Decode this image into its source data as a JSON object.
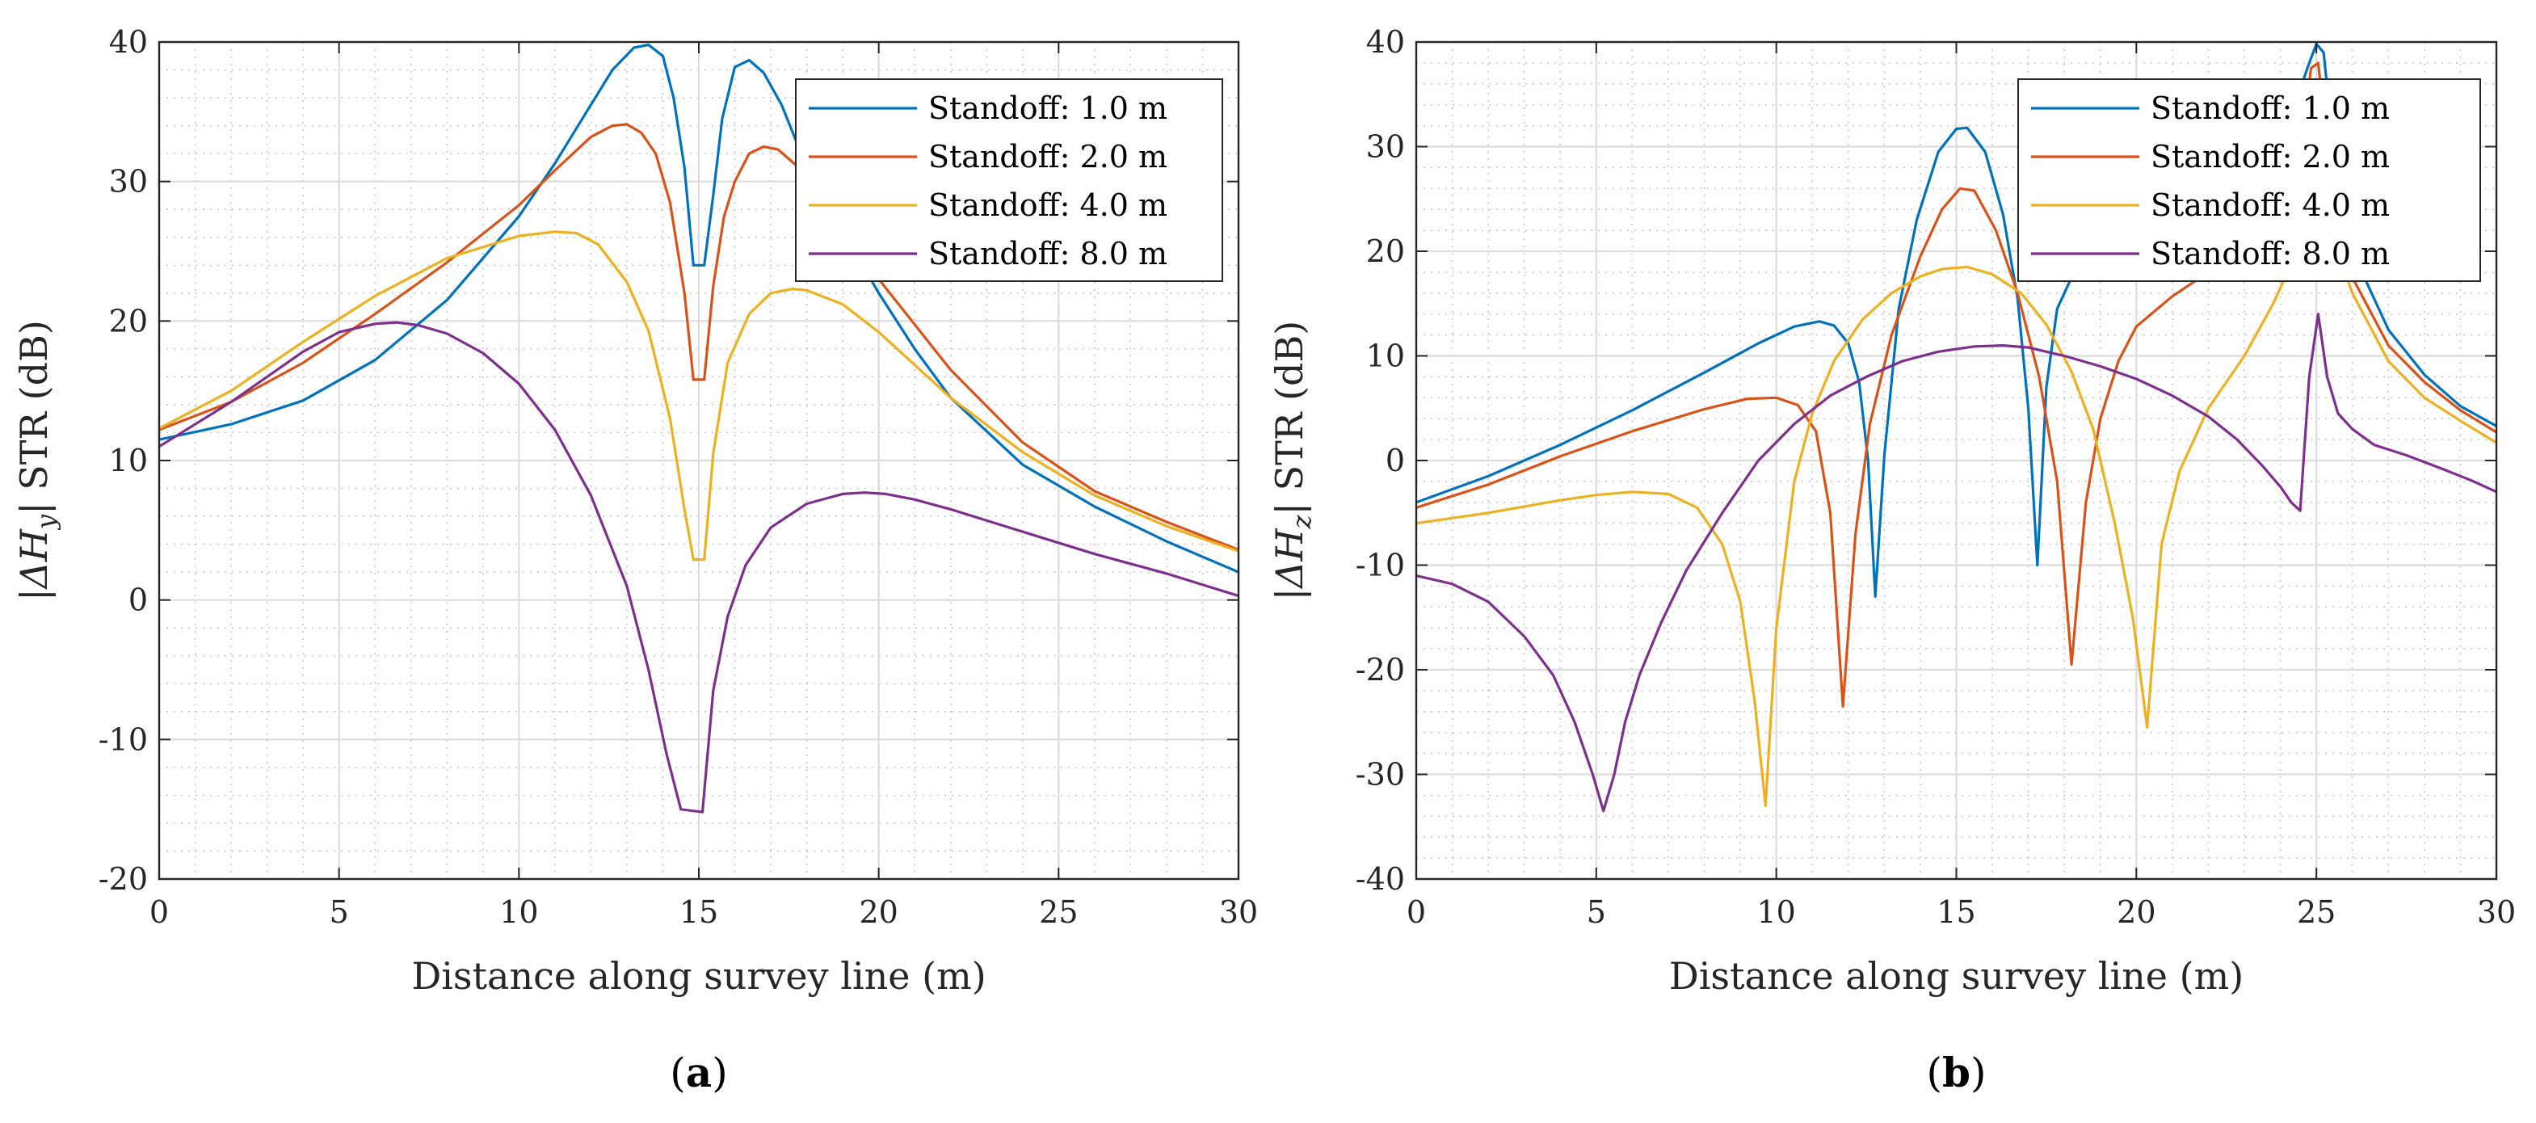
{
  "chart_data": [
    {
      "type": "line",
      "panel_label": "a",
      "xlabel": "Distance along survey line (m)",
      "ylabel_prefix": "|ΔH",
      "ylabel_sub": "y",
      "ylabel_suffix": "| STR (dB)",
      "xlim": [
        0,
        30
      ],
      "ylim": [
        -20,
        40
      ],
      "xticks": [
        0,
        5,
        10,
        15,
        20,
        25,
        30
      ],
      "yticks": [
        -20,
        -10,
        0,
        10,
        20,
        30,
        40
      ],
      "grid": true,
      "legend_position": "top-right",
      "series": [
        {
          "name": "Standoff:  1.0 m",
          "color": "#0072BD",
          "x": [
            0,
            2,
            4,
            6,
            8,
            10,
            11,
            12,
            12.6,
            13.2,
            13.6,
            14,
            14.3,
            14.6,
            14.85,
            15.15,
            15.4,
            15.65,
            16,
            16.4,
            16.8,
            17.3,
            18,
            19,
            20,
            21,
            22,
            24,
            26,
            28,
            30
          ],
          "y": [
            11.5,
            12.6,
            14.3,
            17.2,
            21.5,
            27.5,
            31.3,
            35.5,
            38,
            39.6,
            39.8,
            39,
            36,
            31,
            24,
            24,
            29,
            34.5,
            38.2,
            38.7,
            37.8,
            35.5,
            31,
            26.5,
            22,
            18,
            14.5,
            9.7,
            6.7,
            4.2,
            2
          ]
        },
        {
          "name": "Standoff:  2.0 m",
          "color": "#D95319",
          "x": [
            0,
            2,
            4,
            6,
            8,
            10,
            11,
            12,
            12.6,
            13,
            13.4,
            13.8,
            14.2,
            14.6,
            14.85,
            15.15,
            15.4,
            15.7,
            16,
            16.4,
            16.8,
            17.2,
            18,
            19,
            20,
            22,
            24,
            26,
            28,
            30
          ],
          "y": [
            12.2,
            14.2,
            17,
            20.5,
            24.2,
            28.3,
            30.8,
            33.2,
            34,
            34.1,
            33.5,
            32,
            28.5,
            22,
            15.8,
            15.8,
            22.5,
            27.5,
            30,
            32,
            32.5,
            32.3,
            30.5,
            27,
            23,
            16.5,
            11.3,
            7.8,
            5.6,
            3.6
          ]
        },
        {
          "name": "Standoff:  4.0 m",
          "color": "#EDB120",
          "x": [
            0,
            2,
            4,
            6,
            8,
            10,
            11,
            11.6,
            12.2,
            13,
            13.6,
            14.2,
            14.6,
            14.85,
            15.15,
            15.4,
            15.8,
            16.4,
            17,
            17.6,
            18,
            19,
            20,
            22,
            24,
            26,
            28,
            30
          ],
          "y": [
            12.3,
            15,
            18.5,
            21.8,
            24.5,
            26.1,
            26.4,
            26.3,
            25.5,
            22.8,
            19.3,
            13,
            6.5,
            2.9,
            2.9,
            10.5,
            17,
            20.5,
            22,
            22.3,
            22.2,
            21.2,
            19.2,
            14.5,
            10.6,
            7.5,
            5.3,
            3.5
          ]
        },
        {
          "name": "Standoff:  8.0 m",
          "color": "#7E2F8E",
          "x": [
            0,
            2,
            4,
            5,
            6,
            6.6,
            7.2,
            8,
            9,
            10,
            11,
            12,
            13,
            13.6,
            14.1,
            14.5,
            14.8,
            15.1,
            15.4,
            15.8,
            16.3,
            17,
            18,
            19,
            19.6,
            20.2,
            21,
            22,
            24,
            26,
            28,
            30
          ],
          "y": [
            11,
            14.2,
            17.8,
            19.2,
            19.8,
            19.9,
            19.7,
            19.1,
            17.7,
            15.5,
            12.2,
            7.5,
            1,
            -5,
            -11,
            -15,
            -15.1,
            -15.2,
            -6.5,
            -1.2,
            2.5,
            5.2,
            6.9,
            7.6,
            7.7,
            7.6,
            7.2,
            6.5,
            4.9,
            3.3,
            1.9,
            0.3
          ]
        }
      ]
    },
    {
      "type": "line",
      "panel_label": "b",
      "xlabel": "Distance along survey line (m)",
      "ylabel_prefix": "|ΔH",
      "ylabel_sub": "z",
      "ylabel_suffix": "| STR (dB)",
      "xlim": [
        0,
        30
      ],
      "ylim": [
        -40,
        40
      ],
      "xticks": [
        0,
        5,
        10,
        15,
        20,
        25,
        30
      ],
      "yticks": [
        -40,
        -30,
        -20,
        -10,
        0,
        10,
        20,
        30,
        40
      ],
      "grid": true,
      "legend_position": "top-right",
      "series": [
        {
          "name": "Standoff:  1.0 m",
          "color": "#0072BD",
          "x": [
            0,
            2,
            4,
            6,
            8,
            9.5,
            10.5,
            11.2,
            11.6,
            12,
            12.3,
            12.55,
            12.75,
            13,
            13.4,
            13.9,
            14.5,
            15,
            15.3,
            15.8,
            16.3,
            16.7,
            17,
            17.25,
            17.5,
            17.8,
            18.2,
            19,
            20,
            21,
            22,
            23,
            24,
            24.5,
            24.8,
            25,
            25.2,
            25.5,
            26,
            27,
            28,
            29,
            30
          ],
          "y": [
            -4,
            -1.5,
            1.5,
            4.8,
            8.4,
            11.2,
            12.8,
            13.3,
            12.9,
            11.2,
            7.5,
            0,
            -13,
            0.5,
            14.5,
            23,
            29.5,
            31.7,
            31.8,
            29.5,
            23.5,
            15.5,
            5,
            -10,
            7,
            14.5,
            17.5,
            20.2,
            22.5,
            24.5,
            26,
            28.5,
            31.5,
            35,
            38,
            39.8,
            39,
            29,
            20,
            12.5,
            8.2,
            5.2,
            3.3
          ]
        },
        {
          "name": "Standoff:  2.0 m",
          "color": "#D95319",
          "x": [
            0,
            2,
            4,
            6,
            8,
            9.2,
            10,
            10.6,
            11.1,
            11.5,
            11.85,
            12.2,
            12.6,
            13.2,
            14,
            14.6,
            15.1,
            15.5,
            16.1,
            16.7,
            17.3,
            17.8,
            18.2,
            18.6,
            19,
            19.5,
            20,
            21,
            22,
            23,
            24,
            24.5,
            24.85,
            25.05,
            25.3,
            25.6,
            26,
            27,
            28,
            29,
            30
          ],
          "y": [
            -4.5,
            -2.3,
            0.4,
            2.8,
            4.9,
            5.9,
            6,
            5.3,
            2.8,
            -5,
            -23.5,
            -7,
            3.5,
            12,
            19.5,
            24,
            26,
            25.8,
            22,
            16,
            8,
            -2,
            -19.5,
            -4,
            4,
            9.5,
            12.8,
            15.7,
            18,
            20,
            23.5,
            28,
            37.5,
            38,
            30,
            22,
            17.5,
            11,
            7.5,
            4.8,
            2.7
          ]
        },
        {
          "name": "Standoff:  4.0 m",
          "color": "#EDB120",
          "x": [
            0,
            2,
            4,
            5,
            6,
            7,
            7.8,
            8.5,
            9,
            9.4,
            9.7,
            10,
            10.5,
            11,
            11.6,
            12.4,
            13.2,
            14,
            14.6,
            15.3,
            16,
            16.8,
            17.5,
            18.2,
            18.8,
            19.4,
            19.9,
            20.3,
            20.7,
            21.2,
            22,
            23,
            23.8,
            24.4,
            24.8,
            25.2,
            25.6,
            26,
            27,
            28,
            29,
            30
          ],
          "y": [
            -6,
            -5,
            -3.8,
            -3.3,
            -3,
            -3.2,
            -4.5,
            -8,
            -13.5,
            -23,
            -33,
            -16,
            -2,
            4.5,
            9.5,
            13.5,
            16,
            17.6,
            18.3,
            18.5,
            17.8,
            16,
            13,
            8.5,
            3,
            -6,
            -15,
            -25.5,
            -8,
            -1,
            5,
            10,
            15,
            19.5,
            22,
            24,
            20,
            16,
            9.5,
            6,
            3.8,
            1.7
          ]
        },
        {
          "name": "Standoff:  8.0 m",
          "color": "#7E2F8E",
          "x": [
            0,
            1,
            2,
            3,
            3.8,
            4.4,
            4.9,
            5.2,
            5.5,
            5.8,
            6.2,
            6.8,
            7.5,
            8.5,
            9.5,
            10.5,
            11.5,
            12.5,
            13.5,
            14.5,
            15.5,
            16.3,
            17,
            18,
            19,
            20,
            21,
            22,
            22.8,
            23.5,
            24,
            24.3,
            24.55,
            24.8,
            25.05,
            25.3,
            25.6,
            26,
            26.6,
            27.5,
            28.5,
            29.3,
            30
          ],
          "y": [
            -11,
            -11.8,
            -13.5,
            -16.8,
            -20.5,
            -25,
            -30,
            -33.5,
            -30,
            -25,
            -20.5,
            -15.5,
            -10.5,
            -5,
            0,
            3.5,
            6.2,
            8,
            9.5,
            10.4,
            10.9,
            11,
            10.8,
            10,
            9,
            7.8,
            6.2,
            4.2,
            2,
            -0.5,
            -2.5,
            -4,
            -4.8,
            8,
            14,
            8,
            4.5,
            3,
            1.5,
            0.5,
            -0.8,
            -1.9,
            -3
          ]
        }
      ]
    }
  ]
}
